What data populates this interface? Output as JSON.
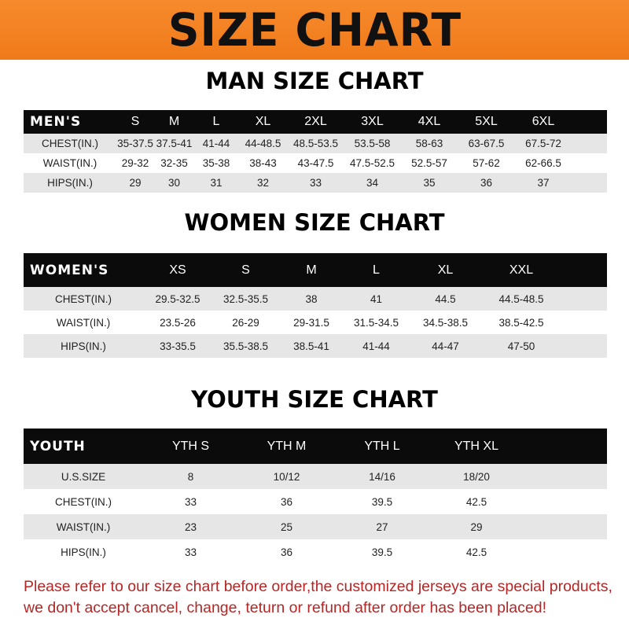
{
  "title": "SIZE CHART",
  "banner_color": "#f47d20",
  "tables": [
    {
      "id": "men",
      "title": "MAN SIZE CHART",
      "header": [
        "MEN'S",
        "S",
        "M",
        "L",
        "XL",
        "2XL",
        "3XL",
        "4XL",
        "5XL",
        "6XL"
      ],
      "rows": [
        [
          "CHEST(IN.)",
          "35-37.5",
          "37.5-41",
          "41-44",
          "44-48.5",
          "48.5-53.5",
          "53.5-58",
          "58-63",
          "63-67.5",
          "67.5-72"
        ],
        [
          "WAIST(IN.)",
          "29-32",
          "32-35",
          "35-38",
          "38-43",
          "43-47.5",
          "47.5-52.5",
          "52.5-57",
          "57-62",
          "62-66.5"
        ],
        [
          "HIPS(IN.)",
          "29",
          "30",
          "31",
          "32",
          "33",
          "34",
          "35",
          "36",
          "37"
        ]
      ]
    },
    {
      "id": "women",
      "title": "WOMEN SIZE CHART",
      "header": [
        "WOMEN'S",
        "XS",
        "S",
        "M",
        "L",
        "XL",
        "XXL"
      ],
      "rows": [
        [
          "CHEST(IN.)",
          "29.5-32.5",
          "32.5-35.5",
          "38",
          "41",
          "44.5",
          "44.5-48.5"
        ],
        [
          "WAIST(IN.)",
          "23.5-26",
          "26-29",
          "29-31.5",
          "31.5-34.5",
          "34.5-38.5",
          "38.5-42.5"
        ],
        [
          "HIPS(IN.)",
          "33-35.5",
          "35.5-38.5",
          "38.5-41",
          "41-44",
          "44-47",
          "47-50"
        ]
      ]
    },
    {
      "id": "youth",
      "title": "YOUTH SIZE CHART",
      "header": [
        "YOUTH",
        "YTH S",
        "YTH M",
        "YTH L",
        "YTH XL"
      ],
      "rows": [
        [
          "U.S.SIZE",
          "8",
          "10/12",
          "14/16",
          "18/20"
        ],
        [
          "CHEST(IN.)",
          "33",
          "36",
          "39.5",
          "42.5"
        ],
        [
          "WAIST(IN.)",
          "23",
          "25",
          "27",
          "29"
        ],
        [
          "HIPS(IN.)",
          "33",
          "36",
          "39.5",
          "42.5"
        ]
      ]
    }
  ],
  "note": {
    "line1": "Please refer to our size chart before order,the customized jerseys are special products,",
    "line2": "we don't accept cancel, change, teturn or refund after order has been placed!",
    "color": "#b52626"
  }
}
